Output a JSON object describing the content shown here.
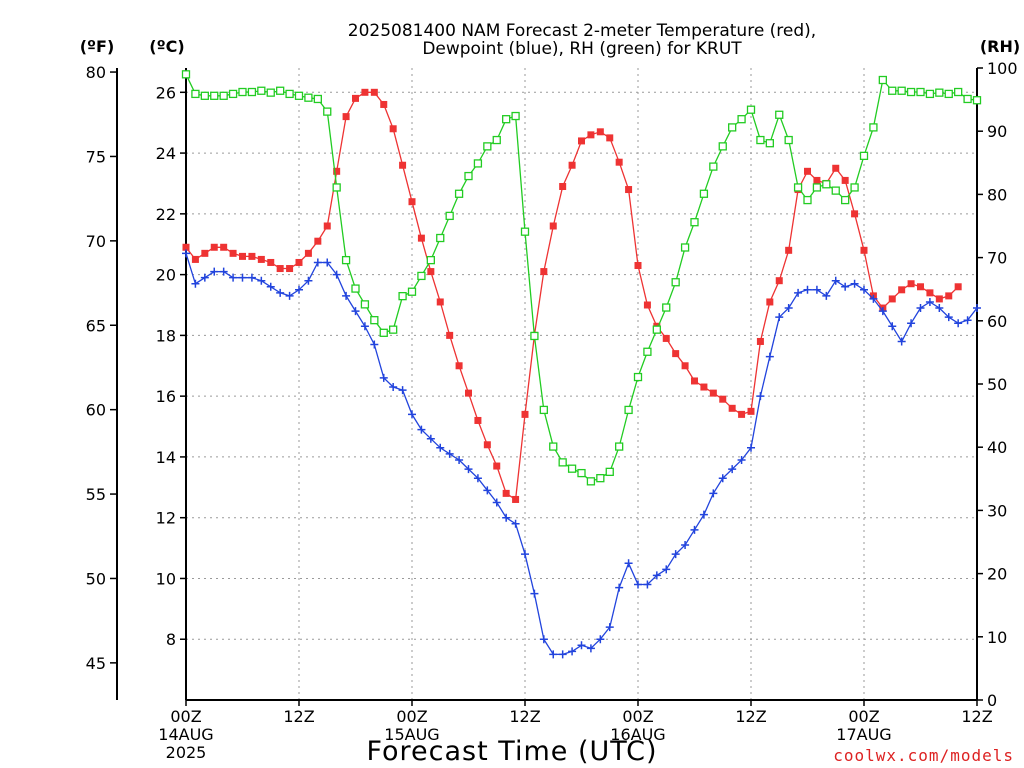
{
  "chart_data": {
    "type": "line",
    "title_line1": "2025081400 NAM Forecast 2-meter Temperature (red),",
    "title_line2": "Dewpoint (blue), RH (green) for KRUT",
    "xlabel": "Forecast Time (UTC)",
    "watermark": "coolwx.com/models",
    "axes": {
      "fahrenheit": {
        "label": "(ºF)",
        "ticks": [
          "80",
          "75",
          "70",
          "65",
          "60",
          "55",
          "50",
          "45"
        ],
        "tick_values": [
          80,
          75,
          70,
          65,
          60,
          55,
          50,
          45
        ]
      },
      "celsius": {
        "label": "(ºC)",
        "range": [
          6,
          26.8
        ],
        "ticks": [
          "26",
          "24",
          "22",
          "20",
          "18",
          "16",
          "14",
          "12",
          "10",
          "8"
        ],
        "tick_values": [
          26,
          24,
          22,
          20,
          18,
          16,
          14,
          12,
          10,
          8
        ]
      },
      "rh": {
        "label": "(RH)",
        "range": [
          0,
          100
        ],
        "ticks": [
          "100",
          "90",
          "80",
          "70",
          "60",
          "50",
          "40",
          "30",
          "20",
          "10",
          "0"
        ],
        "tick_values": [
          100,
          90,
          80,
          70,
          60,
          50,
          40,
          30,
          20,
          10,
          0
        ]
      }
    },
    "x_range_hours": [
      0,
      84
    ],
    "x_ticks": [
      {
        "hour": 0,
        "lines": [
          "00Z",
          "14AUG",
          "2025"
        ]
      },
      {
        "hour": 12,
        "lines": [
          "12Z"
        ]
      },
      {
        "hour": 24,
        "lines": [
          "00Z",
          "15AUG"
        ]
      },
      {
        "hour": 36,
        "lines": [
          "12Z"
        ]
      },
      {
        "hour": 48,
        "lines": [
          "00Z",
          "16AUG"
        ]
      },
      {
        "hour": 60,
        "lines": [
          "12Z"
        ]
      },
      {
        "hour": 72,
        "lines": [
          "00Z",
          "17AUG"
        ]
      },
      {
        "hour": 84,
        "lines": [
          "12Z"
        ]
      }
    ],
    "grid": "dotted",
    "colors": {
      "temperature": "#ee3333",
      "dewpoint": "#2244dd",
      "rh": "#22cc22"
    },
    "series": [
      {
        "key": "temperature",
        "unit": "C",
        "marker": "filled-square",
        "values": [
          [
            0,
            20.9
          ],
          [
            1,
            20.5
          ],
          [
            2,
            20.7
          ],
          [
            3,
            20.9
          ],
          [
            4,
            20.9
          ],
          [
            5,
            20.7
          ],
          [
            6,
            20.6
          ],
          [
            7,
            20.6
          ],
          [
            8,
            20.5
          ],
          [
            9,
            20.4
          ],
          [
            10,
            20.2
          ],
          [
            11,
            20.2
          ],
          [
            12,
            20.4
          ],
          [
            13,
            20.7
          ],
          [
            14,
            21.1
          ],
          [
            15,
            21.6
          ],
          [
            16,
            23.4
          ],
          [
            17,
            25.2
          ],
          [
            18,
            25.8
          ],
          [
            19,
            26.0
          ],
          [
            20,
            26.0
          ],
          [
            21,
            25.6
          ],
          [
            22,
            24.8
          ],
          [
            23,
            23.6
          ],
          [
            24,
            22.4
          ],
          [
            25,
            21.2
          ],
          [
            26,
            20.1
          ],
          [
            27,
            19.1
          ],
          [
            28,
            18.0
          ],
          [
            29,
            17.0
          ],
          [
            30,
            16.1
          ],
          [
            31,
            15.2
          ],
          [
            32,
            14.4
          ],
          [
            33,
            13.7
          ],
          [
            34,
            12.8
          ],
          [
            35,
            12.6
          ],
          [
            36,
            15.4
          ],
          [
            37,
            18.0
          ],
          [
            38,
            20.1
          ],
          [
            39,
            21.6
          ],
          [
            40,
            22.9
          ],
          [
            41,
            23.6
          ],
          [
            42,
            24.4
          ],
          [
            43,
            24.6
          ],
          [
            44,
            24.7
          ],
          [
            45,
            24.5
          ],
          [
            46,
            23.7
          ],
          [
            47,
            22.8
          ],
          [
            48,
            20.3
          ],
          [
            49,
            19.0
          ],
          [
            50,
            18.3
          ],
          [
            51,
            17.9
          ],
          [
            52,
            17.4
          ],
          [
            53,
            17.0
          ],
          [
            54,
            16.5
          ],
          [
            55,
            16.3
          ],
          [
            56,
            16.1
          ],
          [
            57,
            15.9
          ],
          [
            58,
            15.6
          ],
          [
            59,
            15.4
          ],
          [
            60,
            15.5
          ],
          [
            61,
            17.8
          ],
          [
            62,
            19.1
          ],
          [
            63,
            19.8
          ],
          [
            64,
            20.8
          ],
          [
            65,
            22.8
          ],
          [
            66,
            23.4
          ],
          [
            67,
            23.1
          ],
          [
            68,
            23.0
          ],
          [
            69,
            23.5
          ],
          [
            70,
            23.1
          ],
          [
            71,
            22.0
          ],
          [
            72,
            20.8
          ],
          [
            73,
            19.3
          ],
          [
            74,
            18.9
          ],
          [
            75,
            19.2
          ],
          [
            76,
            19.5
          ],
          [
            77,
            19.7
          ],
          [
            78,
            19.6
          ],
          [
            79,
            19.4
          ],
          [
            80,
            19.2
          ],
          [
            81,
            19.3
          ],
          [
            82,
            19.6
          ]
        ]
      },
      {
        "key": "dewpoint",
        "unit": "C",
        "marker": "plus",
        "values": [
          [
            0,
            20.7
          ],
          [
            1,
            19.7
          ],
          [
            2,
            19.9
          ],
          [
            3,
            20.1
          ],
          [
            4,
            20.1
          ],
          [
            5,
            19.9
          ],
          [
            6,
            19.9
          ],
          [
            7,
            19.9
          ],
          [
            8,
            19.8
          ],
          [
            9,
            19.6
          ],
          [
            10,
            19.4
          ],
          [
            11,
            19.3
          ],
          [
            12,
            19.5
          ],
          [
            13,
            19.8
          ],
          [
            14,
            20.4
          ],
          [
            15,
            20.4
          ],
          [
            16,
            20.0
          ],
          [
            17,
            19.3
          ],
          [
            18,
            18.8
          ],
          [
            19,
            18.3
          ],
          [
            20,
            17.7
          ],
          [
            21,
            16.6
          ],
          [
            22,
            16.3
          ],
          [
            23,
            16.2
          ],
          [
            24,
            15.4
          ],
          [
            25,
            14.9
          ],
          [
            26,
            14.6
          ],
          [
            27,
            14.3
          ],
          [
            28,
            14.1
          ],
          [
            29,
            13.9
          ],
          [
            30,
            13.6
          ],
          [
            31,
            13.3
          ],
          [
            32,
            12.9
          ],
          [
            33,
            12.5
          ],
          [
            34,
            12.0
          ],
          [
            35,
            11.8
          ],
          [
            36,
            10.8
          ],
          [
            37,
            9.5
          ],
          [
            38,
            8.0
          ],
          [
            39,
            7.5
          ],
          [
            40,
            7.5
          ],
          [
            41,
            7.6
          ],
          [
            42,
            7.8
          ],
          [
            43,
            7.7
          ],
          [
            44,
            8.0
          ],
          [
            45,
            8.4
          ],
          [
            46,
            9.7
          ],
          [
            47,
            10.5
          ],
          [
            48,
            9.8
          ],
          [
            49,
            9.8
          ],
          [
            50,
            10.1
          ],
          [
            51,
            10.3
          ],
          [
            52,
            10.8
          ],
          [
            53,
            11.1
          ],
          [
            54,
            11.6
          ],
          [
            55,
            12.1
          ],
          [
            56,
            12.8
          ],
          [
            57,
            13.3
          ],
          [
            58,
            13.6
          ],
          [
            59,
            13.9
          ],
          [
            60,
            14.3
          ],
          [
            61,
            16.0
          ],
          [
            62,
            17.3
          ],
          [
            63,
            18.6
          ],
          [
            64,
            18.9
          ],
          [
            65,
            19.4
          ],
          [
            66,
            19.5
          ],
          [
            67,
            19.5
          ],
          [
            68,
            19.3
          ],
          [
            69,
            19.8
          ],
          [
            70,
            19.6
          ],
          [
            71,
            19.7
          ],
          [
            72,
            19.5
          ],
          [
            73,
            19.2
          ],
          [
            74,
            18.8
          ],
          [
            75,
            18.3
          ],
          [
            76,
            17.8
          ],
          [
            77,
            18.4
          ],
          [
            78,
            18.9
          ],
          [
            79,
            19.1
          ],
          [
            80,
            18.9
          ],
          [
            81,
            18.6
          ],
          [
            82,
            18.4
          ],
          [
            83,
            18.5
          ],
          [
            84,
            18.9
          ]
        ]
      },
      {
        "key": "rh",
        "unit": "%",
        "marker": "open-square",
        "values": [
          [
            0,
            99.0
          ],
          [
            1,
            95.9
          ],
          [
            2,
            95.6
          ],
          [
            3,
            95.6
          ],
          [
            4,
            95.6
          ],
          [
            5,
            95.9
          ],
          [
            6,
            96.2
          ],
          [
            7,
            96.2
          ],
          [
            8,
            96.4
          ],
          [
            9,
            96.1
          ],
          [
            10,
            96.4
          ],
          [
            11,
            95.9
          ],
          [
            12,
            95.6
          ],
          [
            13,
            95.3
          ],
          [
            14,
            95.1
          ],
          [
            15,
            93.1
          ],
          [
            16,
            81.1
          ],
          [
            17,
            69.6
          ],
          [
            18,
            65.1
          ],
          [
            19,
            62.6
          ],
          [
            20,
            60.1
          ],
          [
            21,
            58.1
          ],
          [
            22,
            58.6
          ],
          [
            23,
            63.9
          ],
          [
            24,
            64.6
          ],
          [
            25,
            67.1
          ],
          [
            26,
            69.6
          ],
          [
            27,
            73.1
          ],
          [
            28,
            76.6
          ],
          [
            29,
            80.1
          ],
          [
            30,
            82.9
          ],
          [
            31,
            84.9
          ],
          [
            32,
            87.6
          ],
          [
            33,
            88.6
          ],
          [
            34,
            91.9
          ],
          [
            35,
            92.4
          ],
          [
            36,
            74.1
          ],
          [
            37,
            57.6
          ],
          [
            38,
            45.9
          ],
          [
            39,
            40.1
          ],
          [
            40,
            37.6
          ],
          [
            41,
            36.6
          ],
          [
            42,
            35.9
          ],
          [
            43,
            34.6
          ],
          [
            44,
            35.1
          ],
          [
            45,
            36.1
          ],
          [
            46,
            40.1
          ],
          [
            47,
            45.9
          ],
          [
            48,
            51.1
          ],
          [
            49,
            55.1
          ],
          [
            50,
            58.6
          ],
          [
            51,
            62.1
          ],
          [
            52,
            66.1
          ],
          [
            53,
            71.6
          ],
          [
            54,
            75.6
          ],
          [
            55,
            80.1
          ],
          [
            56,
            84.4
          ],
          [
            57,
            87.6
          ],
          [
            58,
            90.6
          ],
          [
            59,
            91.9
          ],
          [
            60,
            93.4
          ],
          [
            61,
            88.6
          ],
          [
            62,
            88.1
          ],
          [
            63,
            92.6
          ],
          [
            64,
            88.6
          ],
          [
            65,
            81.1
          ],
          [
            66,
            79.1
          ],
          [
            67,
            81.1
          ],
          [
            68,
            81.6
          ],
          [
            69,
            80.6
          ],
          [
            70,
            79.1
          ],
          [
            71,
            81.1
          ],
          [
            72,
            86.1
          ],
          [
            73,
            90.6
          ],
          [
            74,
            98.1
          ],
          [
            75,
            96.4
          ],
          [
            76,
            96.4
          ],
          [
            77,
            96.2
          ],
          [
            78,
            96.2
          ],
          [
            79,
            95.9
          ],
          [
            80,
            96.1
          ],
          [
            81,
            95.9
          ],
          [
            82,
            96.2
          ],
          [
            83,
            95.1
          ],
          [
            84,
            94.9
          ]
        ]
      }
    ]
  }
}
